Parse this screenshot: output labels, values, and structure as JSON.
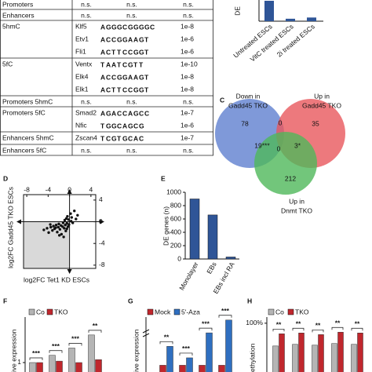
{
  "table": {
    "rows": [
      {
        "label": "Promoters",
        "cells": [
          "n.s.",
          "n.s.",
          "n.s."
        ]
      },
      {
        "label": "Enhancers",
        "cells": [
          "n.s.",
          "n.s.",
          "n.s."
        ]
      },
      {
        "label": "5hmC",
        "entries": [
          {
            "gene": "Klf5",
            "motif": [
              "A",
              "G",
              "G",
              "G",
              "C",
              "G",
              "G",
              "G",
              "G",
              "C"
            ],
            "p": "1e-8"
          },
          {
            "gene": "Etv1",
            "motif": [
              "A",
              "C",
              "C",
              "G",
              "G",
              "A",
              "A",
              "G",
              "T"
            ],
            "p": "1e-6"
          },
          {
            "gene": "Fli1",
            "motif": [
              "A",
              "C",
              "T",
              "T",
              "C",
              "C",
              "G",
              "G",
              "T"
            ],
            "p": "1e-6"
          }
        ]
      },
      {
        "label": "5fC",
        "entries": [
          {
            "gene": "Ventx",
            "motif": [
              "T",
              "A",
              "A",
              "T",
              "C",
              "G",
              "T",
              "T"
            ],
            "p": "1e-10"
          },
          {
            "gene": "Elk4",
            "motif": [
              "A",
              "C",
              "C",
              "G",
              "G",
              "A",
              "A",
              "G",
              "T"
            ],
            "p": "1e-8"
          },
          {
            "gene": "Elk1",
            "motif": [
              "A",
              "C",
              "T",
              "T",
              "C",
              "C",
              "G",
              "G",
              "T"
            ],
            "p": "1e-8"
          }
        ]
      },
      {
        "label": "Promoters 5hmC",
        "cells": [
          "n.s.",
          "n.s.",
          "n.s."
        ]
      },
      {
        "label": "Promoters 5fC",
        "entries": [
          {
            "gene": "Smad2",
            "motif": [
              "A",
              "G",
              "A",
              "C",
              "C",
              "A",
              "G",
              "C",
              "C"
            ],
            "p": "1e-7"
          },
          {
            "gene": "Nfic",
            "motif": [
              "T",
              "G",
              "G",
              "C",
              "A",
              "G",
              "C",
              "G"
            ],
            "p": "1e-6"
          }
        ]
      },
      {
        "label": "Enhancers 5hmC",
        "entries": [
          {
            "gene": "Zscan4",
            "motif": [
              "T",
              "C",
              "G",
              "T",
              "G",
              "C",
              "A",
              "C"
            ],
            "p": "1e-7"
          }
        ]
      },
      {
        "label": "Enhancers 5fC",
        "cells": [
          "n.s.",
          "n.s.",
          "n.s."
        ]
      }
    ]
  },
  "venn": {
    "panel": "C",
    "sets": [
      {
        "label": [
          "Down in",
          "Gadd45 TKO"
        ],
        "color": "#5f7fd0"
      },
      {
        "label": [
          "Up in",
          "Gadd45 TKO"
        ],
        "color": "#e8575c"
      },
      {
        "label": [
          "Up in",
          "Dnmt TKO"
        ],
        "color": "#4fb85a"
      }
    ],
    "regions": {
      "a": "78",
      "b": "35",
      "c": "212",
      "ab": "0",
      "ac": "19***",
      "abc": "0",
      "bc": "3*"
    }
  },
  "chart_data": [
    {
      "type": "bar",
      "ylabel": "DE",
      "categories": [
        "Untreated ESCs",
        "VitC treated ESCs",
        "2i treated ESCs"
      ],
      "values": [
        100,
        12,
        18
      ],
      "ylim": [
        0,
        100
      ],
      "color": "#2f5597"
    },
    {
      "type": "scatter",
      "panel": "D",
      "xlabel": "log2FC Tet1 KD ESCs",
      "ylabel": "log2FC Gadd45 TKO ESCs",
      "x": [
        -4.8,
        -4.2,
        -3.9,
        -3.5,
        -3.2,
        -3.0,
        -2.8,
        -2.5,
        -2.3,
        -2.1,
        -2.0,
        -1.8,
        -1.6,
        -1.5,
        -1.3,
        -1.2,
        -1.0,
        -0.9,
        -0.8,
        -0.7,
        -0.6,
        -0.5,
        -0.4,
        -0.3,
        -0.2,
        -0.1,
        0.2,
        0.4,
        0.6,
        0.9,
        1.2,
        1.5,
        -1.1,
        -2.6,
        -0.5,
        0.3,
        -3.6,
        -1.9
      ],
      "y": [
        -1.5,
        -1.2,
        -2.0,
        -1.0,
        -1.6,
        -0.8,
        -1.3,
        -0.6,
        -1.9,
        -1.0,
        -0.4,
        -1.4,
        -0.7,
        -2.3,
        -0.9,
        -0.2,
        -1.2,
        0.3,
        -0.6,
        -1.7,
        0.6,
        -0.3,
        1.0,
        -0.9,
        0.4,
        -0.5,
        1.5,
        0.8,
        -0.2,
        2.0,
        0.5,
        1.2,
        -2.8,
        -1.1,
        -1.3,
        0.1,
        -0.5,
        -2.5
      ],
      "xlim": [
        -8.6,
        4.9
      ],
      "ylim": [
        -8.6,
        5
      ],
      "xticks": [
        -8,
        -4,
        0,
        4
      ],
      "yticks": [
        4,
        0,
        -4,
        -8
      ],
      "color": "#111111"
    },
    {
      "type": "bar",
      "panel": "E",
      "ylabel": "DE genes (n)",
      "categories": [
        "Monolayer",
        "EBs",
        "EBs incl RA"
      ],
      "values": [
        900,
        660,
        30
      ],
      "ylim": [
        0,
        1000
      ],
      "yticks": [
        0,
        200,
        400,
        600,
        800,
        1000
      ],
      "color": "#2f5597"
    },
    {
      "type": "grouped-bar",
      "panel": "F",
      "ylabel": "ive expression",
      "series": [
        {
          "name": "Co",
          "color": "#b5b5b5",
          "values": [
            1.0,
            1.5,
            2.0,
            2.9
          ]
        },
        {
          "name": "TKO",
          "color": "#c0272d",
          "values": [
            1.0,
            1.1,
            1.0,
            1.2
          ]
        }
      ],
      "annotations": [
        "***",
        "***",
        "***",
        "**"
      ],
      "ylim": [
        0.35,
        5
      ],
      "yticks": [
        1
      ]
    },
    {
      "type": "grouped-bar",
      "panel": "G",
      "ylabel": "ive expression",
      "series": [
        {
          "name": "Mock",
          "color": "#c0272d",
          "values": [
            1,
            1,
            1,
            1
          ]
        },
        {
          "name": "5'-Aza",
          "color": "#2f6fc0",
          "values": [
            3.8,
            2.1,
            5.8,
            7.7
          ]
        }
      ],
      "annotations": [
        "**",
        "***",
        "***",
        "***"
      ],
      "ylim": [
        0,
        10
      ]
    },
    {
      "type": "grouped-bar",
      "panel": "H",
      "ylabel": "ethylation",
      "series": [
        {
          "name": "Co",
          "color": "#b5b5b5",
          "values": [
            72,
            74,
            73,
            75,
            74
          ]
        },
        {
          "name": "TKO",
          "color": "#c0272d",
          "values": [
            87,
            88,
            86,
            89,
            88
          ]
        }
      ],
      "annotations": [
        "**",
        "**",
        "**",
        "**",
        "**"
      ],
      "ylim": [
        40,
        123
      ],
      "yticks": [
        {
          "value": 100,
          "label": "100%"
        }
      ]
    }
  ]
}
